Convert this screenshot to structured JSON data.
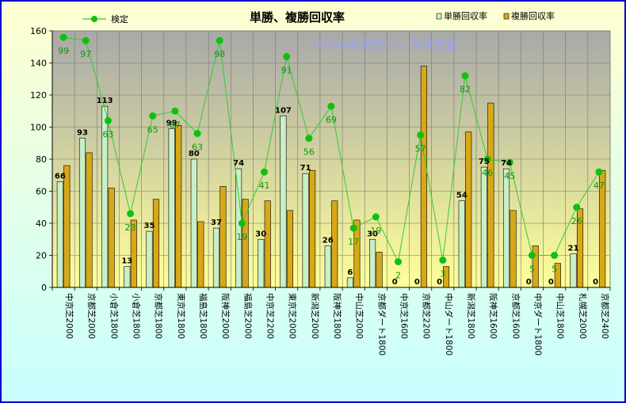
{
  "chart_data": {
    "type": "bar",
    "title": "単勝、複勝回収率",
    "watermark": "©Caniの競馬データ研究室",
    "ylim": [
      0,
      160
    ],
    "yticks": [
      0,
      20,
      40,
      60,
      80,
      100,
      120,
      140,
      160
    ],
    "categories": [
      "中京芝2000",
      "京都芝2000",
      "小倉芝1800",
      "小倉芝1800",
      "京都芝1800",
      "東京芝1800",
      "福島芝1800",
      "阪神芝2000",
      "福島芝2000",
      "中京芝2200",
      "東京芝2000",
      "新潟芝2000",
      "阪神芝1800",
      "中山芝2000",
      "京都ダート1800",
      "中京芝1600",
      "京都芝2200",
      "中山ダート1800",
      "新潟芝1800",
      "阪神芝1600",
      "京都芝1600",
      "中京ダート1800",
      "中山芝1800",
      "札幌芝2000",
      "京都芝2400"
    ],
    "series": [
      {
        "name": "単勝回収率",
        "color": "#c8f0c8",
        "values": [
          66,
          93,
          113,
          13,
          35,
          99,
          80,
          37,
          74,
          30,
          107,
          71,
          26,
          6,
          30,
          0,
          0,
          0,
          54,
          75,
          74,
          0,
          0,
          21,
          0
        ]
      },
      {
        "name": "複勝回収率",
        "color": "#d8a818",
        "values": [
          76,
          84,
          62,
          42,
          55,
          101,
          41,
          63,
          55,
          54,
          48,
          73,
          54,
          42,
          22,
          0,
          138,
          13,
          97,
          115,
          48,
          26,
          15,
          49,
          73
        ]
      },
      {
        "name": "検定",
        "color": "#33cc33",
        "type": "line",
        "values": [
          156,
          154,
          104,
          46,
          107,
          110,
          96,
          154,
          40,
          72,
          144,
          93,
          113,
          37,
          44,
          16,
          95,
          17,
          132,
          80,
          78,
          20,
          20,
          50,
          72
        ],
        "labels": [
          "99",
          "97",
          "63",
          "23",
          "65",
          "67",
          "63",
          "98",
          "19",
          "41",
          "91",
          "56",
          "69",
          "17",
          "19",
          "2",
          "57",
          "3",
          "82",
          "46",
          "45",
          "5",
          "5",
          "26",
          "47"
        ]
      }
    ],
    "legend": {
      "line_label": "検定",
      "bar_labels": [
        "単勝回収率",
        "複勝回収率"
      ],
      "placement": "top"
    },
    "grid": true
  },
  "colors": {
    "plot_top": "#a8a8a8",
    "plot_bottom": "#ffff99",
    "outer_top": "#ffffd0",
    "outer_bottom": "#c8ffff",
    "border": "#0000cc"
  }
}
